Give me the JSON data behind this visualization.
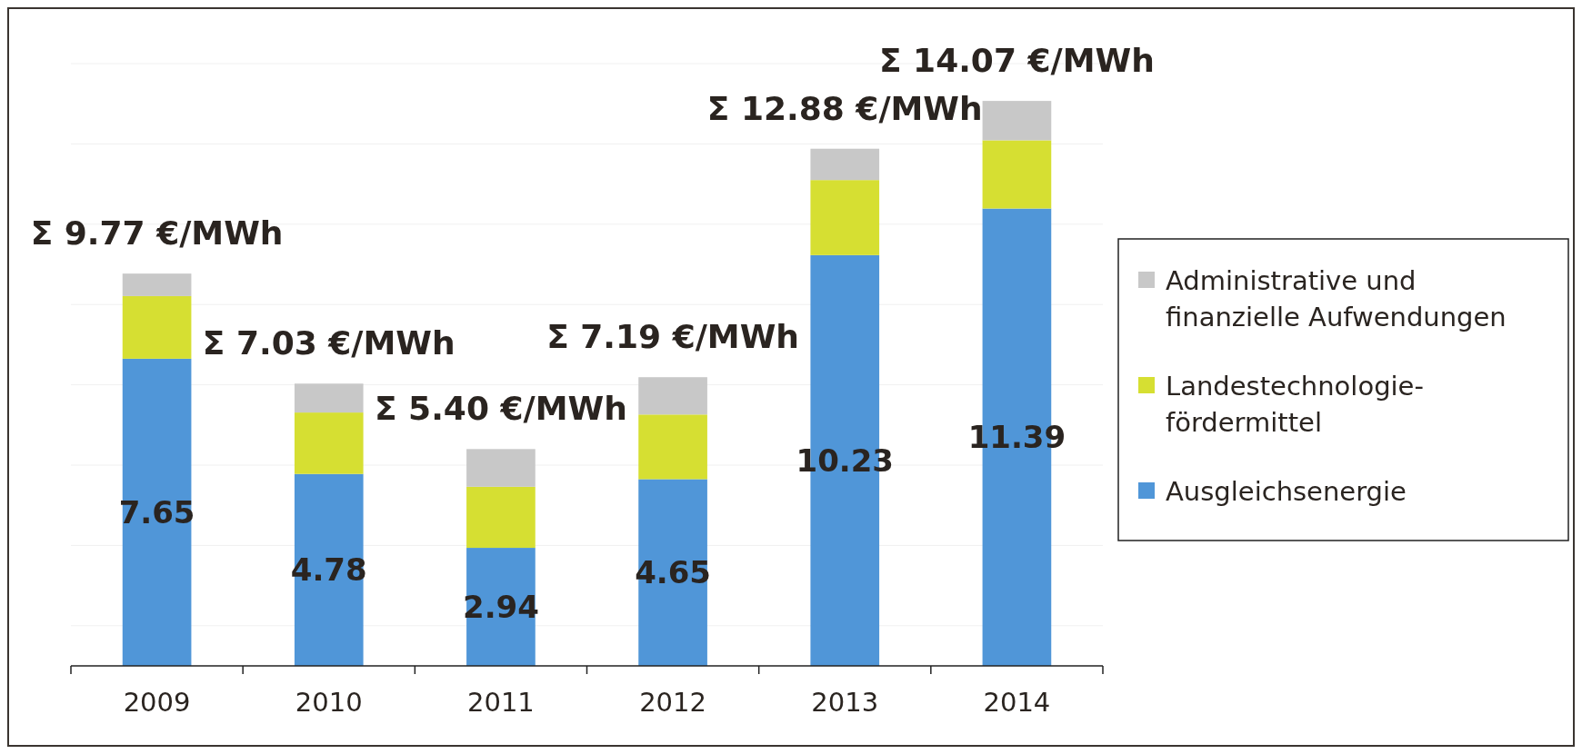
{
  "chart_data": {
    "type": "bar",
    "stacked": true,
    "categories": [
      "2009",
      "2010",
      "2011",
      "2012",
      "2013",
      "2014"
    ],
    "series": [
      {
        "name": "Ausgleichsenergie",
        "color": "#5096d8",
        "values": [
          7.65,
          4.78,
          2.94,
          4.65,
          10.23,
          11.39
        ],
        "value_labels": [
          "7.65",
          "4.78",
          "2.94",
          "4.65",
          "10.23",
          "11.39"
        ]
      },
      {
        "name": "Landestechnologie-fördermittel",
        "color": "#d6df32",
        "values": [
          1.56,
          1.53,
          1.52,
          1.61,
          1.87,
          1.7
        ]
      },
      {
        "name": "Administrative und finanzielle Aufwendungen",
        "color": "#c8c8c8",
        "values": [
          0.56,
          0.72,
          0.94,
          0.93,
          0.78,
          0.98
        ]
      }
    ],
    "totals": [
      "Σ 9.77 €/MWh",
      "Σ 7.03 €/MWh",
      "Σ 5.40 €/MWh",
      "Σ 7.19 €/MWh",
      "Σ 12.88 €/MWh",
      "Σ 14.07 €/MWh"
    ],
    "ylim": [
      0,
      15
    ],
    "yticks": [
      {
        "value": 1,
        "label": null
      },
      {
        "value": 3,
        "label": null
      },
      {
        "value": 5,
        "label": null
      },
      {
        "value": 7,
        "label": null
      },
      {
        "value": 9,
        "label": null
      },
      {
        "value": 11,
        "label": null
      },
      {
        "value": 13,
        "label": null
      },
      {
        "value": 15,
        "label": null
      }
    ],
    "grid": "y",
    "legend": "right",
    "tick_labels": "x"
  }
}
